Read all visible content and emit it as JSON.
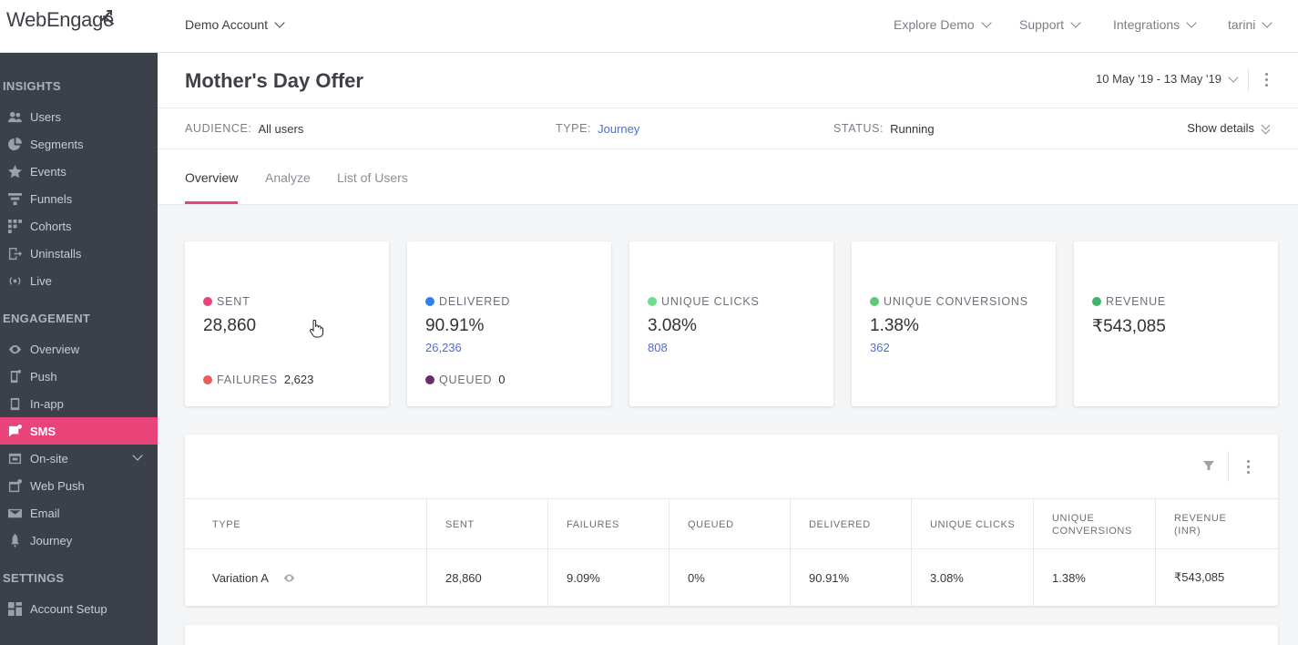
{
  "app": {
    "logo_text": "WebEngage"
  },
  "topbar": {
    "account": "Demo Account",
    "explore": "Explore Demo",
    "support": "Support",
    "integrations": "Integrations",
    "user": "tarini"
  },
  "sidebar": {
    "insights_label": "INSIGHTS",
    "insights": [
      {
        "label": "Users",
        "icon": "users-icon"
      },
      {
        "label": "Segments",
        "icon": "pie-icon"
      },
      {
        "label": "Events",
        "icon": "star-icon"
      },
      {
        "label": "Funnels",
        "icon": "funnel-icon"
      },
      {
        "label": "Cohorts",
        "icon": "grid-icon"
      },
      {
        "label": "Uninstalls",
        "icon": "exit-icon"
      },
      {
        "label": "Live",
        "icon": "broadcast-icon"
      }
    ],
    "engagement_label": "ENGAGEMENT",
    "engagement": [
      {
        "label": "Overview",
        "icon": "eye-icon"
      },
      {
        "label": "Push",
        "icon": "mobile-icon"
      },
      {
        "label": "In-app",
        "icon": "mobile-icon"
      },
      {
        "label": "SMS",
        "icon": "sms-icon",
        "active": true
      },
      {
        "label": "On-site",
        "icon": "window-icon"
      },
      {
        "label": "Web Push",
        "icon": "window-icon"
      },
      {
        "label": "Email",
        "icon": "mail-icon"
      },
      {
        "label": "Journey",
        "icon": "rocket-icon"
      }
    ],
    "settings_label": "SETTINGS",
    "settings": [
      {
        "label": "Account Setup",
        "icon": "grid-icon"
      }
    ]
  },
  "header": {
    "title": "Mother's Day Offer",
    "date_range": "10 May '19 - 13 May '19"
  },
  "info": {
    "audience_key": "AUDIENCE:",
    "audience_val": "All users",
    "type_key": "TYPE:",
    "type_val": "Journey",
    "status_key": "STATUS:",
    "status_val": "Running",
    "show_details": "Show details"
  },
  "tabs": [
    "Overview",
    "Analyze",
    "List of Users"
  ],
  "metrics": [
    {
      "label": "SENT",
      "value": "28,860",
      "dot": "#e9447a",
      "foot_label": "FAILURES",
      "foot_value": "2,623",
      "foot_dot": "#e85d5d"
    },
    {
      "label": "DELIVERED",
      "value": "90.91%",
      "sub": "26,236",
      "dot": "#2f80ed",
      "foot_label": "QUEUED",
      "foot_value": "0",
      "foot_dot": "#6b2d6e"
    },
    {
      "label": "UNIQUE CLICKS",
      "value": "3.08%",
      "sub": "808",
      "dot": "#6fdc8c"
    },
    {
      "label": "UNIQUE CONVERSIONS",
      "value": "1.38%",
      "sub": "362",
      "dot": "#5cc97a"
    },
    {
      "label": "REVENUE",
      "value": "₹543,085",
      "dot": "#3fb36a"
    }
  ],
  "table": {
    "headers": [
      "TYPE",
      "SENT",
      "FAILURES",
      "QUEUED",
      "DELIVERED",
      "UNIQUE CLICKS",
      "UNIQUE CONVERSIONS",
      "REVENUE (INR)"
    ],
    "header_lines": [
      [
        "TYPE"
      ],
      [
        "SENT"
      ],
      [
        "FAILURES"
      ],
      [
        "QUEUED"
      ],
      [
        "DELIVERED"
      ],
      [
        "UNIQUE CLICKS"
      ],
      [
        "UNIQUE",
        "CONVERSIONS"
      ],
      [
        "REVENUE",
        "(INR)"
      ]
    ],
    "rows": [
      [
        "Variation A",
        "28,860",
        "9.09%",
        "0%",
        "90.91%",
        "3.08%",
        "1.38%",
        "₹543,085"
      ]
    ]
  }
}
